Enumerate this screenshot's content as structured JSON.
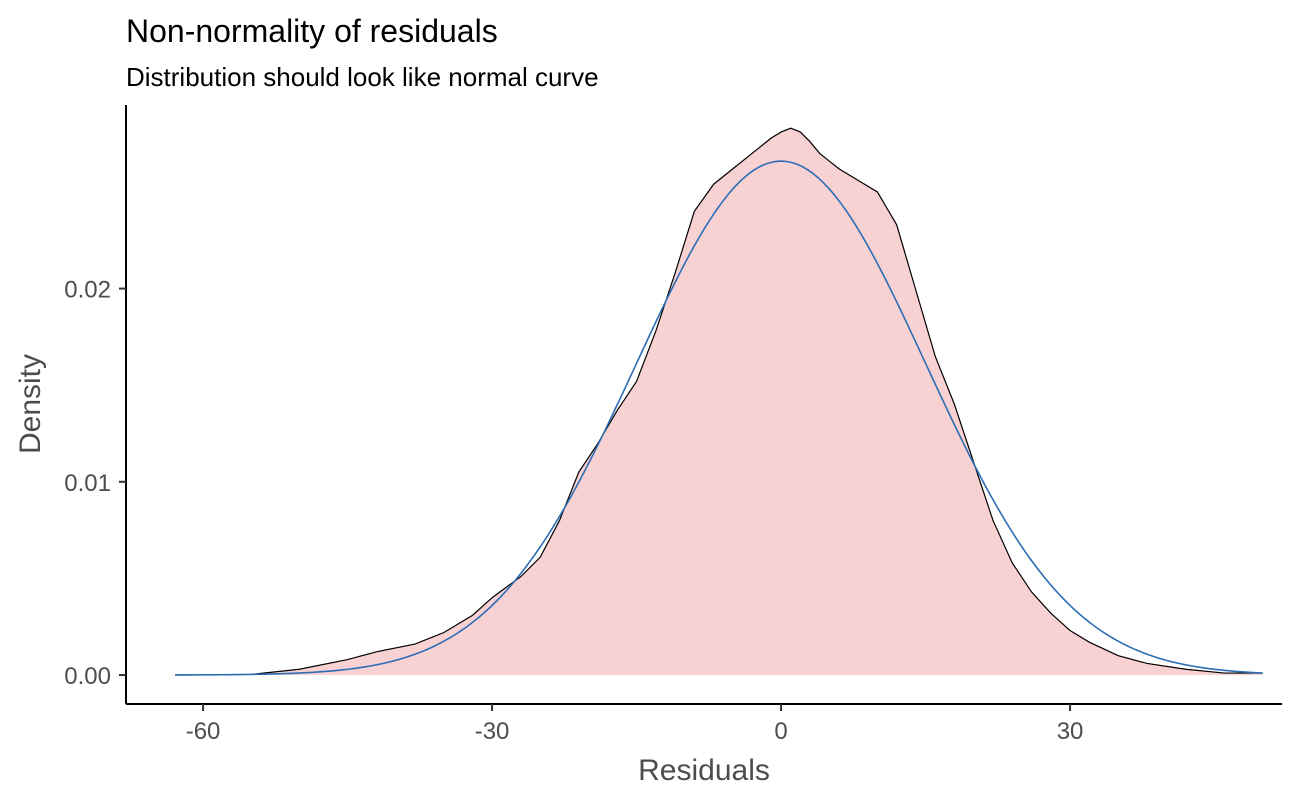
{
  "chart_data": {
    "type": "area",
    "title": "Non-normality of residuals",
    "subtitle": "Distribution should look like normal curve",
    "xlabel": "Residuals",
    "ylabel": "Density",
    "xlim": [
      -68,
      52
    ],
    "ylim": [
      -0.0015,
      0.0295
    ],
    "x_ticks": [
      {
        "value": -60,
        "label": "-60"
      },
      {
        "value": -30,
        "label": "-30"
      },
      {
        "value": 0,
        "label": "0"
      },
      {
        "value": 30,
        "label": "30"
      }
    ],
    "y_ticks": [
      {
        "value": 0.0,
        "label": "0.00"
      },
      {
        "value": 0.01,
        "label": "0.01"
      },
      {
        "value": 0.02,
        "label": "0.02"
      }
    ],
    "grid": false,
    "series": [
      {
        "kind": "density",
        "fill": "#f8d1d2",
        "stroke": "#000000",
        "points": [
          [
            -62.9,
            0.0
          ],
          [
            -55,
            3e-05
          ],
          [
            -50,
            0.0003
          ],
          [
            -45,
            0.0008
          ],
          [
            -42,
            0.0012
          ],
          [
            -38,
            0.0016
          ],
          [
            -35,
            0.0022
          ],
          [
            -32,
            0.0031
          ],
          [
            -30,
            0.004
          ],
          [
            -27,
            0.0051
          ],
          [
            -25,
            0.0061
          ],
          [
            -23,
            0.008
          ],
          [
            -21,
            0.0105
          ],
          [
            -19,
            0.012
          ],
          [
            -17,
            0.0137
          ],
          [
            -15,
            0.0152
          ],
          [
            -13,
            0.0178
          ],
          [
            -11,
            0.0208
          ],
          [
            -9,
            0.024
          ],
          [
            -7,
            0.0254
          ],
          [
            -5,
            0.0262
          ],
          [
            -3,
            0.027
          ],
          [
            -1,
            0.0278
          ],
          [
            0,
            0.0281
          ],
          [
            1,
            0.0283
          ],
          [
            2,
            0.0281
          ],
          [
            3,
            0.0276
          ],
          [
            4,
            0.027
          ],
          [
            5,
            0.0266
          ],
          [
            6,
            0.0262
          ],
          [
            8,
            0.0256
          ],
          [
            10,
            0.025
          ],
          [
            12,
            0.0233
          ],
          [
            14,
            0.0199
          ],
          [
            16,
            0.0165
          ],
          [
            18,
            0.014
          ],
          [
            20,
            0.011
          ],
          [
            22,
            0.008
          ],
          [
            24,
            0.0058
          ],
          [
            26,
            0.0043
          ],
          [
            28,
            0.0032
          ],
          [
            30,
            0.0023
          ],
          [
            32,
            0.0017
          ],
          [
            35,
            0.001
          ],
          [
            38,
            0.0006
          ],
          [
            42,
            0.0003
          ],
          [
            46,
            0.0001
          ],
          [
            50,
            0.0001
          ]
        ]
      },
      {
        "kind": "normal-curve",
        "stroke": "#2c6eb5",
        "mean": 0,
        "sd": 15,
        "x_range": [
          -62.9,
          50
        ]
      }
    ]
  }
}
